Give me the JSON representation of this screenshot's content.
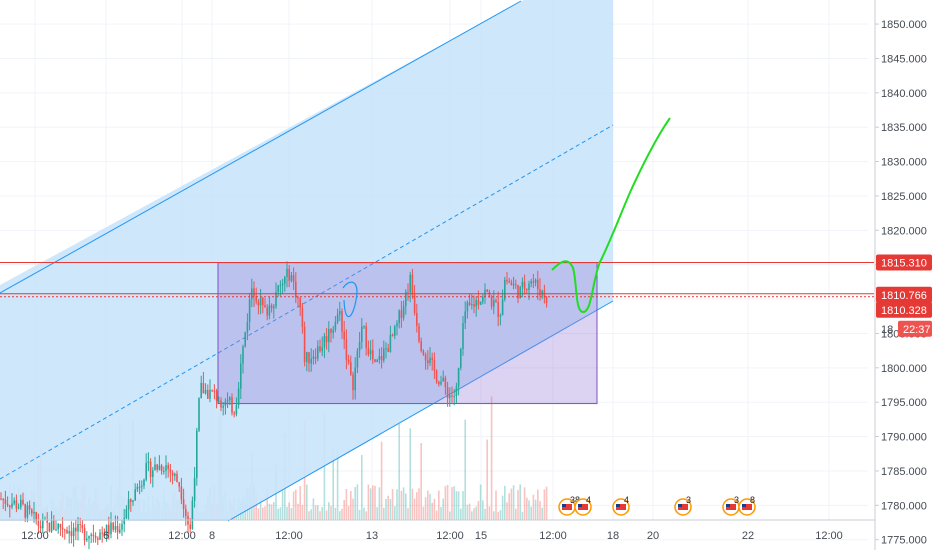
{
  "chart_data": {
    "type": "candlestick",
    "symbol_hint": "",
    "y_axis": {
      "min": 1773.5,
      "max": 1853.5,
      "ticks": [
        "1775.000",
        "1780.000",
        "1785.000",
        "1790.000",
        "1795.000",
        "1800.000",
        "1805.000",
        "1810.000",
        "1815.000",
        "1820.000",
        "1825.000",
        "1830.000",
        "1835.000",
        "1840.000",
        "1845.000",
        "1850.000"
      ]
    },
    "x_axis": {
      "ticks": [
        "12:00",
        "6",
        "12:00",
        "8",
        "12:00",
        "13",
        "12:00",
        "15",
        "12:00",
        "18",
        "20",
        "22",
        "12:00"
      ]
    },
    "price_levels": [
      {
        "label": "1815.310",
        "value": 1815.31,
        "color": "#e53935"
      },
      {
        "label": "1810.766",
        "value": 1810.766,
        "color": "#e53935"
      },
      {
        "label": "1810.328",
        "value": 1810.328,
        "color": "#e53935"
      }
    ],
    "countdown_label": "22:37",
    "overlapped_tick_label": "18",
    "rectangle": {
      "top": 1815.3,
      "bottom": 1794.8,
      "color": "#9c7fd6"
    },
    "projection": {
      "color": "#22dd22"
    },
    "channel": {
      "color": "#2196f3",
      "fill": "#c9e4fb"
    },
    "event_badges": [
      {
        "count": "38"
      },
      {
        "count": "4"
      },
      {
        "count": "4"
      },
      {
        "count": "3"
      },
      {
        "count": "3"
      },
      {
        "count": "8"
      }
    ],
    "colors": {
      "up": "#26a69a",
      "down": "#ef5350",
      "grid": "#f0f3fa",
      "axis_text": "#444a53"
    },
    "grid": true
  }
}
